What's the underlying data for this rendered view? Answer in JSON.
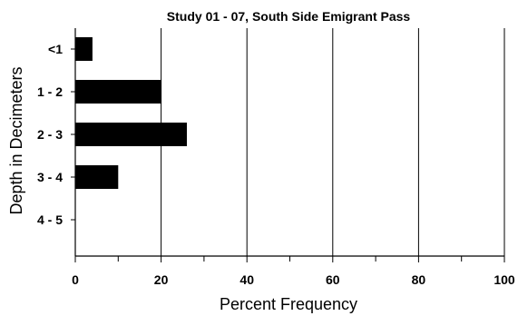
{
  "chart_data": {
    "type": "bar",
    "orientation": "horizontal",
    "title": "Study 01 - 07, South Side Emigrant Pass",
    "xlabel": "Percent Frequency",
    "ylabel": "Depth in Decimeters",
    "categories": [
      "<1",
      "1 - 2",
      "2 - 3",
      "3 - 4",
      "4 - 5"
    ],
    "values": [
      4,
      20,
      26,
      10,
      0
    ],
    "xlim": [
      0,
      100
    ],
    "x_major_ticks": [
      0,
      20,
      40,
      60,
      80,
      100
    ],
    "x_minor_ticks": [
      10,
      30,
      50,
      70,
      90
    ],
    "grid": "vertical major lines",
    "legend": "none",
    "bar_color": "#000000"
  }
}
